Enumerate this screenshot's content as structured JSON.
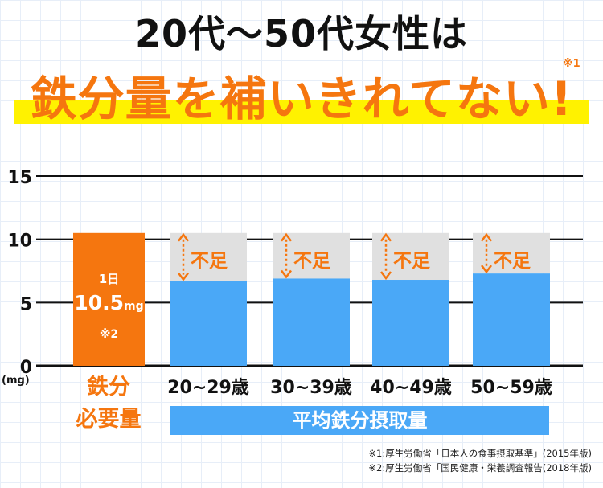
{
  "header": {
    "title_line1": "20代〜50代女性は",
    "title_line2": "鉄分量を補いきれてない!",
    "title_note": "※1"
  },
  "chart_data": {
    "type": "bar",
    "ylim": [
      0,
      15
    ],
    "yticks": [
      0,
      5,
      10,
      15
    ],
    "yunit": "(mg)",
    "requirement": {
      "value": 10.5,
      "label_top": "1日",
      "label_value": "10.5",
      "label_unit": "mg",
      "label_note": "※2",
      "category_label_line1": "鉄分",
      "category_label_line2": "必要量"
    },
    "categories": [
      "20~29歳",
      "30~39歳",
      "40~49歳",
      "50~59歳"
    ],
    "series": [
      {
        "name": "平均鉄分摂取量",
        "values": [
          6.7,
          6.9,
          6.8,
          7.3
        ]
      }
    ],
    "shortfall_label": "不足",
    "colors": {
      "requirement": "#f5760f",
      "intake": "#4aa8f7",
      "shortfall": "#e0e0e0",
      "arrow": "#f5760f",
      "axis": "#111111"
    }
  },
  "footnotes": [
    "※1:厚生労働省「日本人の食事摂取基準」(2015年版)",
    "※2:厚生労働省「国民健康・栄養調査報告(2018年版)"
  ]
}
